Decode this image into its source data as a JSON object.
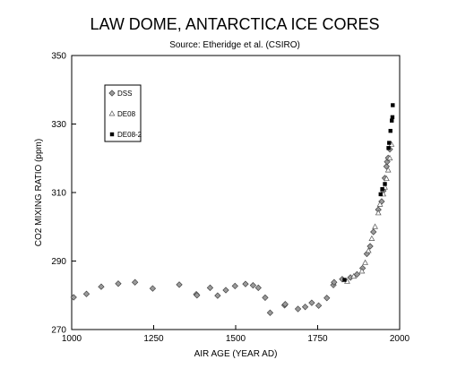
{
  "chart_data": {
    "type": "scatter",
    "title": "LAW DOME, ANTARCTICA ICE CORES",
    "subtitle": "Source:  Etheridge et al. (CSIRO)",
    "xlabel": "AIR AGE  (YEAR AD)",
    "ylabel": "CO2 MIXING RATIO  (ppm)",
    "xlim": [
      1000,
      2000
    ],
    "ylim": [
      270,
      350
    ],
    "xticks": [
      "1000",
      "1250",
      "1500",
      "1750",
      "2000"
    ],
    "yticks": [
      "270",
      "290",
      "310",
      "330",
      "350"
    ],
    "grid": false,
    "legend_position": "top-left",
    "series": [
      {
        "name": "DSS",
        "marker": "diamond",
        "points": [
          [
            1006,
            279.4
          ],
          [
            1045,
            280.4
          ],
          [
            1090,
            282.5
          ],
          [
            1142,
            283.4
          ],
          [
            1193,
            283.8
          ],
          [
            1247,
            282.0
          ],
          [
            1328,
            283.1
          ],
          [
            1380,
            280.3
          ],
          [
            1382,
            280.0
          ],
          [
            1422,
            282.2
          ],
          [
            1445,
            279.9
          ],
          [
            1470,
            281.5
          ],
          [
            1498,
            282.7
          ],
          [
            1530,
            283.3
          ],
          [
            1553,
            282.9
          ],
          [
            1569,
            282.2
          ],
          [
            1590,
            279.3
          ],
          [
            1605,
            274.9
          ],
          [
            1649,
            277.1
          ],
          [
            1651,
            277.4
          ],
          [
            1690,
            276.0
          ],
          [
            1712,
            276.6
          ],
          [
            1732,
            277.8
          ],
          [
            1753,
            277.0
          ],
          [
            1778,
            279.2
          ],
          [
            1798,
            283.0
          ],
          [
            1800,
            283.8
          ],
          [
            1825,
            284.7
          ],
          [
            1850,
            285.2
          ],
          [
            1870,
            286.1
          ],
          [
            1887,
            287.9
          ],
          [
            1900,
            292.1
          ],
          [
            1910,
            294.3
          ],
          [
            1920,
            298.5
          ],
          [
            1935,
            305.0
          ],
          [
            1945,
            307.4
          ],
          [
            1950,
            310.5
          ],
          [
            1955,
            314.2
          ],
          [
            1960,
            317.6
          ],
          [
            1962,
            319.0
          ],
          [
            1965,
            320.1
          ],
          [
            1970,
            322.6
          ]
        ]
      },
      {
        "name": "DE08",
        "marker": "triangle",
        "points": [
          [
            1840,
            284.0
          ],
          [
            1860,
            285.5
          ],
          [
            1885,
            287.0
          ],
          [
            1895,
            289.5
          ],
          [
            1905,
            293.0
          ],
          [
            1915,
            296.5
          ],
          [
            1925,
            300.0
          ],
          [
            1935,
            304.0
          ],
          [
            1940,
            306.5
          ],
          [
            1950,
            309.5
          ],
          [
            1955,
            311.5
          ],
          [
            1960,
            314.0
          ],
          [
            1965,
            316.5
          ],
          [
            1970,
            320.0
          ],
          [
            1975,
            324.0
          ]
        ]
      },
      {
        "name": "DE08-2",
        "marker": "square",
        "points": [
          [
            1832,
            284.5
          ],
          [
            1942,
            309.5
          ],
          [
            1947,
            311.0
          ],
          [
            1955,
            312.5
          ],
          [
            1966,
            323.0
          ],
          [
            1968,
            324.5
          ],
          [
            1972,
            328.0
          ],
          [
            1976,
            331.0
          ],
          [
            1978,
            332.0
          ],
          [
            1979,
            335.5
          ]
        ]
      }
    ]
  }
}
